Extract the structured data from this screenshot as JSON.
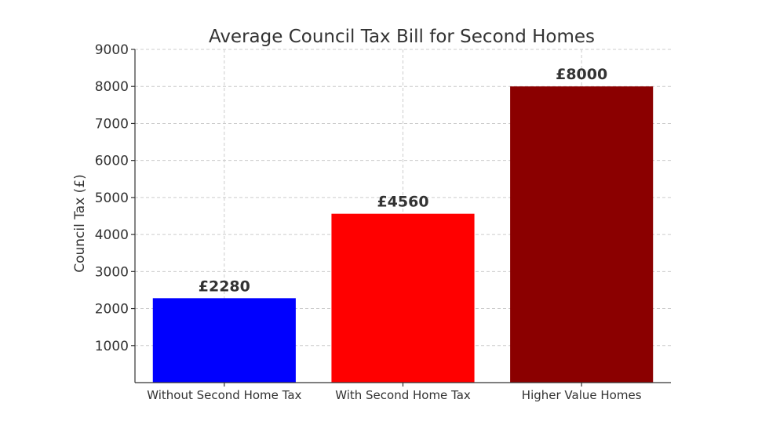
{
  "chart_data": {
    "type": "bar",
    "title": "Average Council Tax Bill for Second Homes",
    "xlabel": "",
    "ylabel": "Council Tax (£)",
    "categories": [
      "Without Second Home Tax",
      "With Second Home Tax",
      "Higher Value Homes"
    ],
    "values": [
      2280,
      4560,
      8000
    ],
    "data_labels": [
      "£2280",
      "£4560",
      "£8000"
    ],
    "colors": [
      "#0000ff",
      "#ff0000",
      "#8b0000"
    ],
    "ylim": [
      0,
      9000
    ],
    "yticks": [
      1000,
      2000,
      3000,
      4000,
      5000,
      6000,
      7000,
      8000,
      9000
    ],
    "grid": true
  }
}
